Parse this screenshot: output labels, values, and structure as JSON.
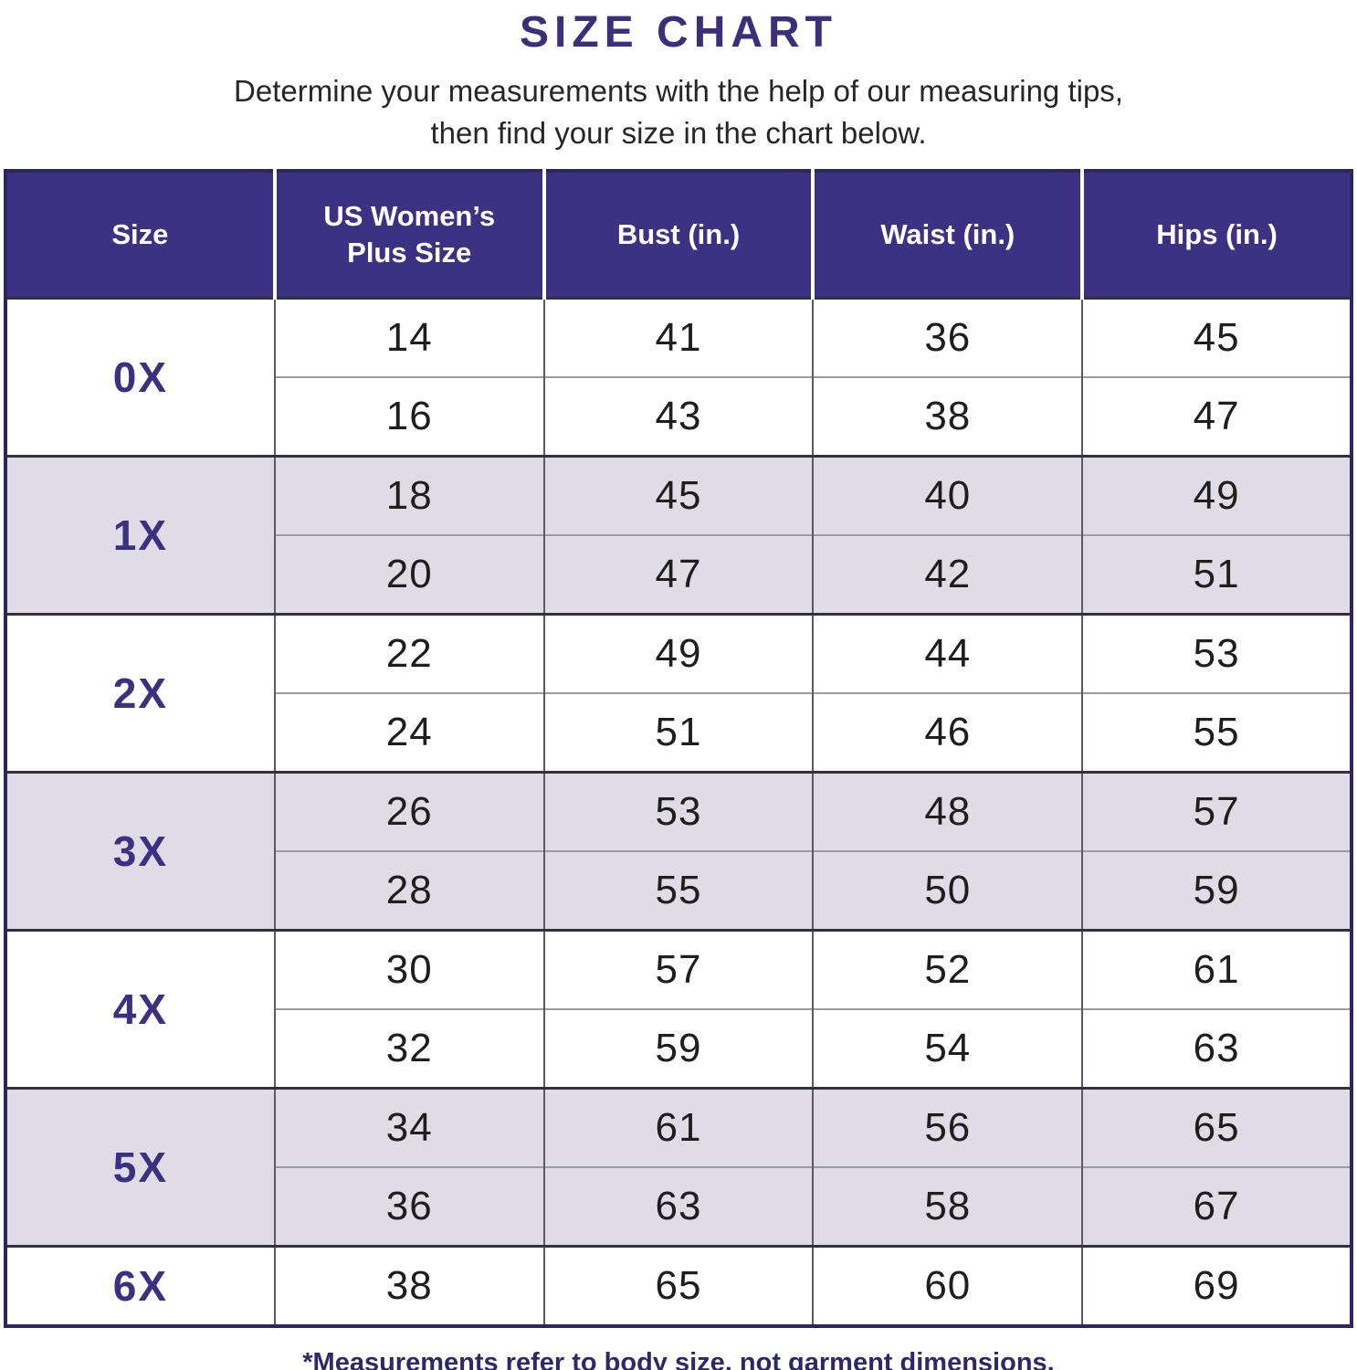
{
  "title": "SIZE CHART",
  "subtitle_line1": "Determine your measurements with the help of our measuring tips,",
  "subtitle_line2": "then find your size in the chart below.",
  "footnote": "*Measurements refer to body size, not garment dimensions.",
  "colors": {
    "header_bg": "#3d3184",
    "header_text": "#ffffff",
    "title_text": "#3a2e7d",
    "size_label_text": "#3b3183",
    "shaded_row_bg": "#dfdce6",
    "body_text": "#1e1e1e",
    "outer_border": "#2c285e",
    "group_divider": "#32323c",
    "sub_row_divider": "#9a9aa1",
    "footnote_text": "#2d2968"
  },
  "chart_data": {
    "type": "table",
    "title": "SIZE CHART",
    "columns": [
      "Size",
      "US Women’s Plus Size",
      "Bust (in.)",
      "Waist (in.)",
      "Hips (in.)"
    ],
    "rows": [
      [
        "0X",
        "14",
        "41",
        "36",
        "45"
      ],
      [
        "0X",
        "16",
        "43",
        "38",
        "47"
      ],
      [
        "1X",
        "18",
        "45",
        "40",
        "49"
      ],
      [
        "1X",
        "20",
        "47",
        "42",
        "51"
      ],
      [
        "2X",
        "22",
        "49",
        "44",
        "53"
      ],
      [
        "2X",
        "24",
        "51",
        "46",
        "55"
      ],
      [
        "3X",
        "26",
        "53",
        "48",
        "57"
      ],
      [
        "3X",
        "28",
        "55",
        "50",
        "59"
      ],
      [
        "4X",
        "30",
        "57",
        "52",
        "61"
      ],
      [
        "4X",
        "32",
        "59",
        "54",
        "63"
      ],
      [
        "5X",
        "34",
        "61",
        "56",
        "65"
      ],
      [
        "5X",
        "36",
        "63",
        "58",
        "67"
      ],
      [
        "6X",
        "38",
        "65",
        "60",
        "69"
      ]
    ],
    "layout": {
      "grouped_by_size": true,
      "rows_per_group": [
        2,
        2,
        2,
        2,
        2,
        2,
        1
      ],
      "shaded_groups": [
        "1X",
        "3X",
        "5X"
      ]
    }
  }
}
